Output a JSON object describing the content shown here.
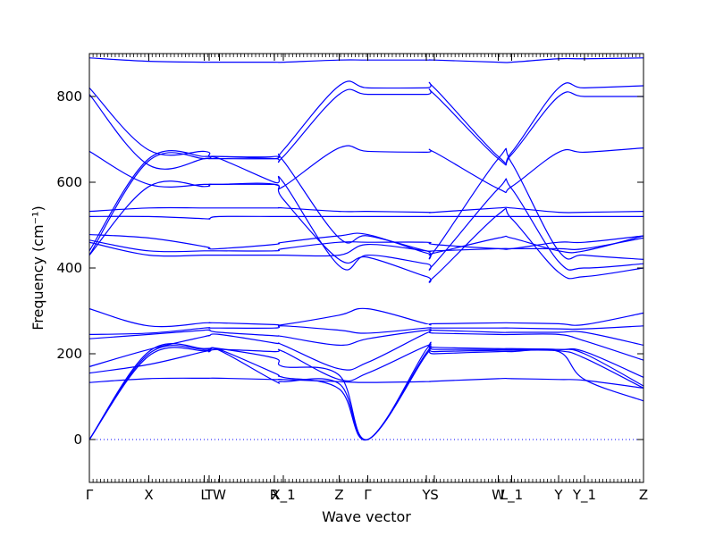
{
  "chart_data": {
    "type": "line",
    "title": "",
    "xlabel": "Wave vector",
    "ylabel": "Frequency (cm⁻¹)",
    "ylim": [
      -100,
      900
    ],
    "xlim": [
      0,
      1
    ],
    "yticks": [
      0,
      200,
      400,
      600,
      800
    ],
    "xticks": [
      {
        "label": "Γ",
        "x": 0.0
      },
      {
        "label": "X",
        "x": 0.1073
      },
      {
        "label": "L",
        "x": 0.2073
      },
      {
        "label": "T",
        "x": 0.2161
      },
      {
        "label": "W",
        "x": 0.2347
      },
      {
        "label": "R",
        "x": 0.3339
      },
      {
        "label": "X_1",
        "x": 0.35
      },
      {
        "label": "Z",
        "x": 0.4508
      },
      {
        "label": "Γ",
        "x": 0.5024
      },
      {
        "label": "Y",
        "x": 0.6081
      },
      {
        "label": "S",
        "x": 0.6226
      },
      {
        "label": "W",
        "x": 0.7379
      },
      {
        "label": "L_1",
        "x": 0.7621
      },
      {
        "label": "Y",
        "x": 0.8468
      },
      {
        "label": "Y_1",
        "x": 0.8935
      },
      {
        "label": "Z",
        "x": 1.0
      }
    ],
    "zero_line": true,
    "line_color": "#0000ff",
    "zero_line_color": "#0000ff",
    "series_x": [
      0.0,
      0.1073,
      0.2073,
      0.2161,
      0.2347,
      0.3339,
      0.35,
      0.4508,
      0.5024,
      0.6081,
      0.6226,
      0.7379,
      0.7621,
      0.8468,
      0.8935,
      1.0
    ],
    "series": [
      {
        "values": [
          0,
          195,
          207,
          205,
          208,
          137,
          135,
          130,
          0,
          198,
          200,
          205,
          205,
          205,
          140,
          90
        ]
      },
      {
        "values": [
          0,
          200,
          210,
          209,
          210,
          155,
          145,
          118,
          0,
          202,
          205,
          208,
          208,
          207,
          190,
          120
        ]
      },
      {
        "values": [
          0,
          205,
          212,
          212,
          212,
          190,
          170,
          150,
          0,
          210,
          210,
          210,
          210,
          210,
          200,
          125
        ]
      },
      {
        "values": [
          133,
          142,
          143,
          143,
          143,
          140,
          140,
          135,
          133,
          135,
          136,
          142,
          142,
          140,
          138,
          120
        ]
      },
      {
        "values": [
          155,
          175,
          205,
          205,
          210,
          205,
          205,
          140,
          155,
          218,
          215,
          212,
          212,
          210,
          205,
          145
        ]
      },
      {
        "values": [
          170,
          210,
          240,
          242,
          245,
          225,
          220,
          165,
          180,
          248,
          248,
          245,
          245,
          245,
          230,
          185
        ]
      },
      {
        "values": [
          235,
          245,
          255,
          255,
          250,
          242,
          240,
          220,
          235,
          255,
          255,
          250,
          250,
          250,
          250,
          220
        ]
      },
      {
        "values": [
          245,
          248,
          260,
          260,
          260,
          260,
          265,
          255,
          248,
          260,
          260,
          260,
          260,
          258,
          258,
          265
        ]
      },
      {
        "values": [
          305,
          265,
          272,
          272,
          272,
          268,
          268,
          290,
          305,
          270,
          270,
          272,
          272,
          270,
          268,
          295
        ]
      },
      {
        "values": [
          430,
          590,
          590,
          595,
          595,
          595,
          560,
          420,
          425,
          380,
          380,
          525,
          515,
          390,
          380,
          400
        ]
      },
      {
        "values": [
          430,
          650,
          655,
          655,
          655,
          600,
          600,
          405,
          430,
          410,
          410,
          585,
          585,
          415,
          400,
          410
        ]
      },
      {
        "values": [
          440,
          655,
          660,
          660,
          660,
          655,
          650,
          470,
          475,
          440,
          440,
          655,
          645,
          440,
          430,
          420
        ]
      },
      {
        "values": [
          460,
          430,
          430,
          430,
          430,
          430,
          430,
          430,
          455,
          440,
          440,
          445,
          445,
          445,
          445,
          470
        ]
      },
      {
        "values": [
          465,
          440,
          440,
          440,
          440,
          440,
          445,
          460,
          460,
          460,
          455,
          445,
          445,
          460,
          460,
          475
        ]
      },
      {
        "values": [
          478,
          470,
          450,
          445,
          445,
          455,
          460,
          475,
          478,
          435,
          435,
          470,
          470,
          440,
          440,
          475
        ]
      },
      {
        "values": [
          520,
          520,
          515,
          515,
          520,
          520,
          520,
          520,
          520,
          520,
          520,
          520,
          520,
          520,
          520,
          520
        ]
      },
      {
        "values": [
          532,
          540,
          540,
          540,
          540,
          540,
          540,
          532,
          532,
          530,
          530,
          540,
          540,
          530,
          530,
          532
        ]
      },
      {
        "values": [
          672,
          595,
          595,
          595,
          595,
          595,
          590,
          680,
          672,
          670,
          670,
          585,
          590,
          670,
          670,
          680
        ]
      },
      {
        "values": [
          805,
          640,
          655,
          655,
          655,
          655,
          660,
          805,
          805,
          805,
          805,
          655,
          665,
          800,
          800,
          800
        ]
      },
      {
        "values": [
          820,
          675,
          672,
          660,
          660,
          660,
          675,
          825,
          820,
          820,
          820,
          660,
          670,
          820,
          820,
          825
        ]
      },
      {
        "values": [
          890,
          882,
          880,
          880,
          880,
          880,
          880,
          885,
          885,
          885,
          885,
          880,
          880,
          888,
          888,
          890
        ]
      }
    ]
  }
}
